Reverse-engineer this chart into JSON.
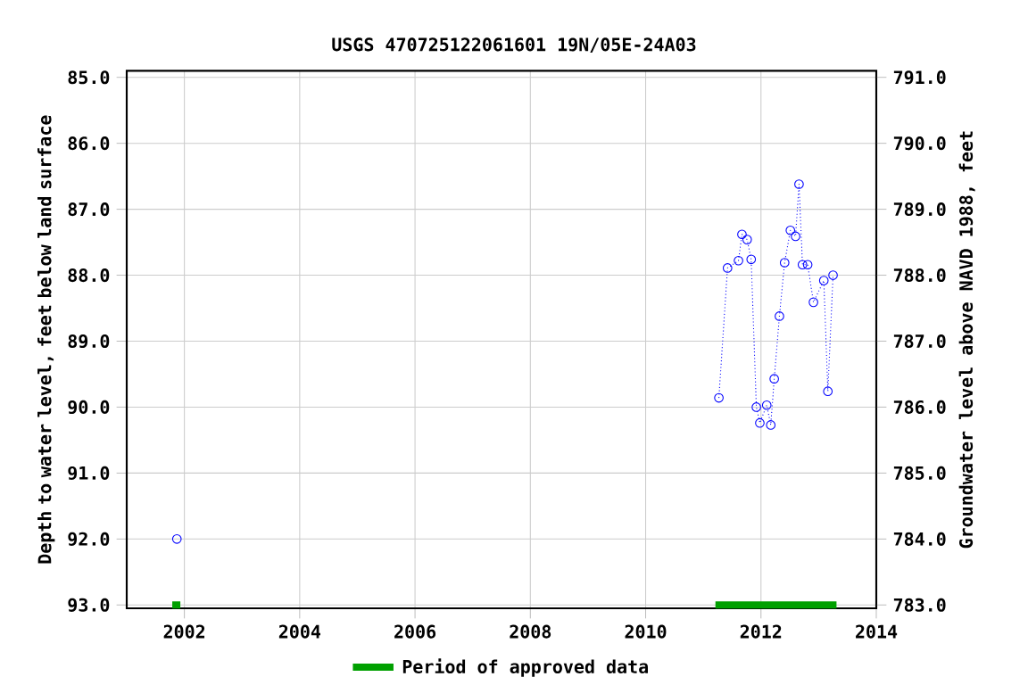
{
  "chart_data": {
    "type": "line",
    "title": "USGS 470725122061601 19N/05E-24A03",
    "ylabel": "Depth to water level, feet below land surface",
    "y2label": "Groundwater level above NAVD 1988, feet",
    "xlim": [
      2001,
      2014
    ],
    "xticks": [
      2002,
      2004,
      2006,
      2008,
      2010,
      2012,
      2014
    ],
    "ylim": [
      93.05,
      84.9
    ],
    "yticks": [
      {
        "value": 85,
        "label": "85.0"
      },
      {
        "value": 86,
        "label": "86.0"
      },
      {
        "value": 87,
        "label": "87.0"
      },
      {
        "value": 88,
        "label": "88.0"
      },
      {
        "value": 89,
        "label": "89.0"
      },
      {
        "value": 90,
        "label": "90.0"
      },
      {
        "value": 91,
        "label": "91.0"
      },
      {
        "value": 92,
        "label": "92.0"
      },
      {
        "value": 93,
        "label": "93.0"
      }
    ],
    "y2lim": [
      782.95,
      791.1
    ],
    "y2ticks": [
      {
        "value": 783,
        "label": "783.0"
      },
      {
        "value": 784,
        "label": "784.0"
      },
      {
        "value": 785,
        "label": "785.0"
      },
      {
        "value": 786,
        "label": "786.0"
      },
      {
        "value": 787,
        "label": "787.0"
      },
      {
        "value": 788,
        "label": "788.0"
      },
      {
        "value": 789,
        "label": "789.0"
      },
      {
        "value": 790,
        "label": "790.0"
      },
      {
        "value": 791,
        "label": "791.0"
      }
    ],
    "grid": true,
    "legend": "bottom",
    "series": [
      {
        "color": "#0000ff",
        "marker": "circle",
        "line_style": "dotted",
        "x": [
          2001.87,
          2006.5,
          2011.27,
          2011.42,
          2011.61,
          2011.67,
          2011.76,
          2011.83,
          2011.92,
          2011.98,
          2012.1,
          2012.17,
          2012.23,
          2012.32,
          2012.41,
          2012.51,
          2012.6,
          2012.66,
          2012.72,
          2012.81,
          2012.91,
          2013.09,
          2013.16,
          2013.25
        ],
        "values": [
          92.0,
          null,
          89.86,
          87.89,
          87.78,
          87.38,
          87.46,
          87.76,
          90.0,
          90.24,
          89.97,
          90.27,
          89.57,
          88.62,
          87.81,
          87.32,
          87.41,
          86.62,
          87.84,
          87.84,
          88.41,
          88.08,
          89.76,
          88.0
        ]
      },
      {
        "name": "Period of approved data",
        "color": "#00a000",
        "marker": "none",
        "line_style": "solid",
        "x": [
          2001.79,
          2001.93,
          2006.5,
          2011.21,
          2013.31
        ],
        "values": [
          93,
          93,
          null,
          93,
          93
        ]
      }
    ]
  }
}
